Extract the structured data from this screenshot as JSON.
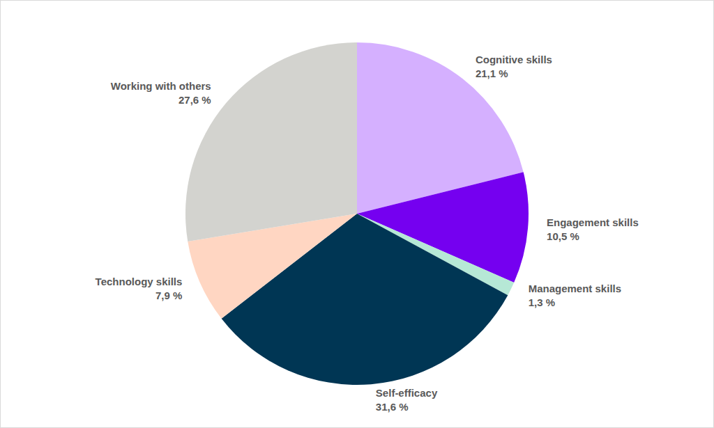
{
  "chart_data": {
    "type": "pie",
    "categories": [
      "Cognitive skills",
      "Engagement skills",
      "Management skills",
      "Self-efficacy",
      "Technology skills",
      "Working with others"
    ],
    "values": [
      21.1,
      10.5,
      1.3,
      31.6,
      7.9,
      27.6
    ],
    "value_labels": [
      "21,1 %",
      "10,5 %",
      "1,3 %",
      "31,6 %",
      "7,9 %",
      "27,6 %"
    ],
    "colors": [
      "#d5b0ff",
      "#7500f0",
      "#b6e8d6",
      "#003654",
      "#ffd6c2",
      "#d3d3cf"
    ],
    "data_labels": true
  }
}
